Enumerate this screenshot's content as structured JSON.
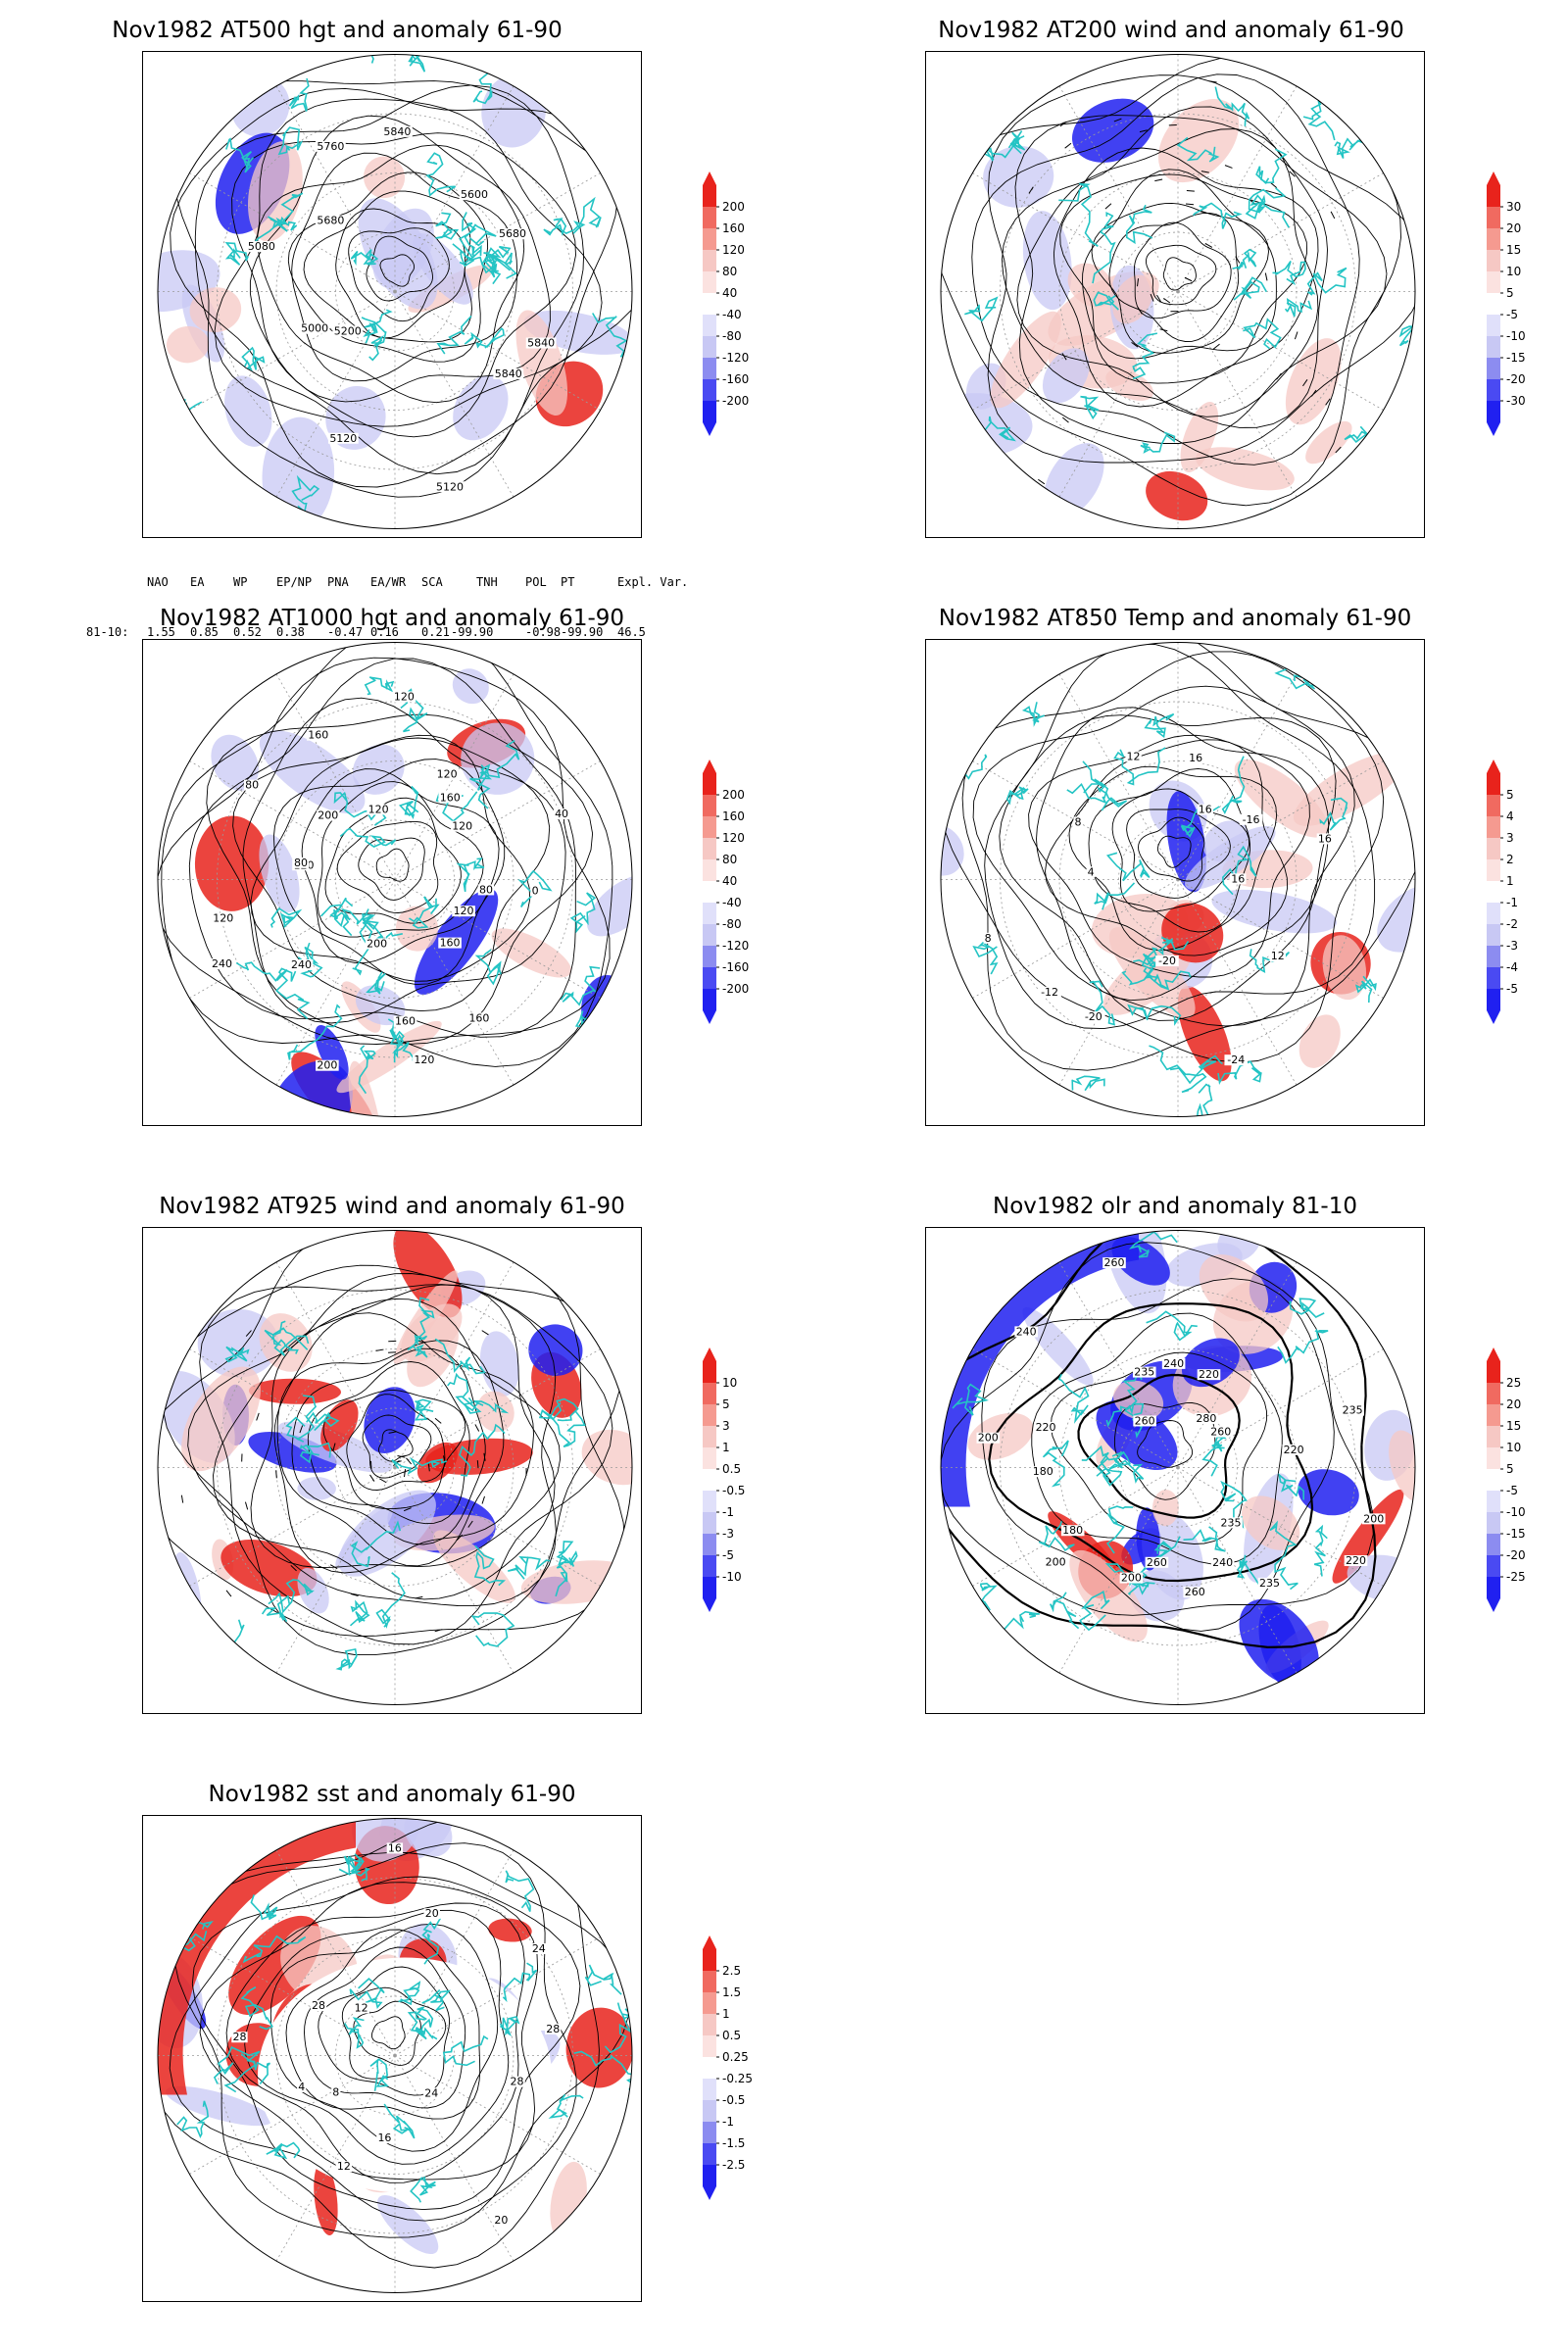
{
  "panels": [
    {
      "id": "p1",
      "title": "Nov1982 AT500 hgt and anomaly 61-90",
      "type": "hgt",
      "contour_labels": [
        "5840",
        "5840",
        "5120",
        "5120",
        "5200",
        "5000",
        "5080",
        "5680",
        "5760",
        "5840",
        "5600",
        "5680"
      ],
      "colorbar": [
        "200",
        "160",
        "120",
        "80",
        "40",
        "-40",
        "-80",
        "-120",
        "-160",
        "-200"
      ]
    },
    {
      "id": "p2",
      "title": "Nov1982 AT200 wind and anomaly 61-90",
      "type": "wind",
      "contour_labels": [],
      "colorbar": [
        "30",
        "20",
        "15",
        "10",
        "5",
        "-5",
        "-10",
        "-15",
        "-20",
        "-30"
      ]
    },
    {
      "id": "p3",
      "title": "Nov1982 AT1000 hgt and anomaly 61-90",
      "type": "hgt2",
      "contour_labels": [
        "80",
        "120",
        "160",
        "160",
        "120",
        "160",
        "200",
        "200",
        "240",
        "240",
        "120",
        "120",
        "80",
        "80",
        "200",
        "160",
        "120",
        "120",
        "120",
        "160",
        "120",
        "40",
        "0"
      ],
      "colorbar": [
        "200",
        "160",
        "120",
        "80",
        "40",
        "-40",
        "-80",
        "-120",
        "-160",
        "-200"
      ]
    },
    {
      "id": "p4",
      "title": "Nov1982 AT850 Temp and anomaly 61-90",
      "type": "temp",
      "contour_labels": [
        "16",
        "12",
        "-24",
        "-20",
        "-20",
        "-12",
        "8",
        "4",
        "8",
        "12",
        "16",
        "16",
        "-16",
        "16"
      ],
      "colorbar": [
        "5",
        "4",
        "3",
        "2",
        "1",
        "-1",
        "-2",
        "-3",
        "-4",
        "-5"
      ]
    },
    {
      "id": "p5",
      "title": "Nov1982 AT925 wind and anomaly 61-90",
      "type": "wind2",
      "contour_labels": [],
      "colorbar": [
        "10",
        "5",
        "3",
        "1",
        "0.5",
        "-0.5",
        "-1",
        "-3",
        "-5",
        "-10"
      ]
    },
    {
      "id": "p6",
      "title": "Nov1982 olr and anomaly 81-10",
      "type": "olr",
      "contour_labels": [
        "200",
        "220",
        "235",
        "235",
        "240",
        "260",
        "260",
        "200",
        "180",
        "200",
        "180",
        "200",
        "220",
        "240",
        "260",
        "235",
        "260",
        "240",
        "220",
        "280",
        "260",
        "235",
        "220"
      ],
      "colorbar": [
        "25",
        "20",
        "15",
        "10",
        "5",
        "-5",
        "-10",
        "-15",
        "-20",
        "-25"
      ]
    },
    {
      "id": "p7",
      "title": "Nov1982 sst and anomaly 61-90",
      "type": "sst",
      "contour_labels": [
        "28",
        "24",
        "20",
        "16",
        "12",
        "8",
        "4",
        "28",
        "28",
        "12",
        "16",
        "20",
        "24",
        "28"
      ],
      "colorbar": [
        "2.5",
        "1.5",
        "1",
        "0.5",
        "0.25",
        "-0.25",
        "-0.5",
        "-1",
        "-1.5",
        "-2.5"
      ]
    }
  ],
  "indices": {
    "headers": [
      "NAO",
      "EA",
      "WP",
      "EP/NP",
      "PNA",
      "EA/WR",
      "SCA",
      "TNH",
      "POL",
      "PT",
      "Expl. Var."
    ],
    "row_label": "81-10:",
    "values": [
      "1.55",
      "0.85",
      "0.52",
      "0.38",
      "-0.47",
      "0.16",
      "0.21",
      "-99.90",
      "-0.98",
      "-99.90",
      "46.5"
    ]
  },
  "colors": {
    "positive_strong": "#e8231c",
    "positive_light": "#f6c8c4",
    "negative_strong": "#2020f0",
    "negative_light": "#c8c8f4",
    "coastline": "#24c4c4",
    "contour": "#000000",
    "graticule": "#9a9a9a"
  }
}
